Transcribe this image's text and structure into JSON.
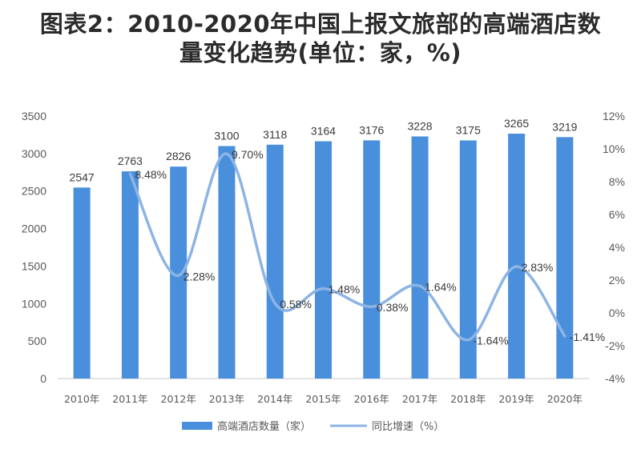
{
  "title": {
    "line1": "图表2：2010-2020年中国上报文旅部的高端酒店数",
    "line2": "量变化趋势(单位：家，%)"
  },
  "colors": {
    "bar": "#4a8fdb",
    "line": "#8db4e4",
    "text": "#595959",
    "title": "#2b2b2b"
  },
  "chart_data": {
    "type": "bar",
    "title": "图表2：2010-2020年中国上报文旅部的高端酒店数量变化趋势(单位：家，%)",
    "categories": [
      "2010年",
      "2011年",
      "2012年",
      "2013年",
      "2014年",
      "2015年",
      "2016年",
      "2017年",
      "2018年",
      "2019年",
      "2020年"
    ],
    "series": [
      {
        "name": "高端酒店数量（家）",
        "type": "bar",
        "axis": "left",
        "values": [
          2547,
          2763,
          2826,
          3100,
          3118,
          3164,
          3176,
          3228,
          3175,
          3265,
          3219
        ],
        "labels": [
          "2547",
          "2763",
          "2826",
          "3100",
          "3118",
          "3164",
          "3176",
          "3228",
          "3175",
          "3265",
          "3219"
        ]
      },
      {
        "name": "同比增速（%）",
        "type": "line",
        "axis": "right",
        "x": [
          "2011年",
          "2012年",
          "2013年",
          "2014年",
          "2015年",
          "2016年",
          "2017年",
          "2018年",
          "2019年",
          "2020年"
        ],
        "values": [
          8.48,
          2.28,
          9.7,
          0.58,
          1.48,
          0.38,
          1.64,
          -1.64,
          2.83,
          -1.41
        ],
        "labels": [
          "8.48%",
          "2.28%",
          "9.70%",
          "0.58%",
          "1.48%",
          "0.38%",
          "1.64%",
          "-1.64%",
          "2.83%",
          "-1.41%"
        ]
      }
    ],
    "y_left": {
      "min": 0,
      "max": 3500,
      "step": 500,
      "ticks": [
        "0",
        "500",
        "1000",
        "1500",
        "2000",
        "2500",
        "3000",
        "3500"
      ]
    },
    "y_right": {
      "min": -4,
      "max": 12,
      "step": 2,
      "ticks": [
        "-4%",
        "-2%",
        "0%",
        "2%",
        "4%",
        "6%",
        "8%",
        "10%",
        "12%"
      ]
    },
    "grid": false,
    "legend": "bottom",
    "legend_entries": [
      "高端酒店数量（家）",
      "同比增速（%）"
    ]
  }
}
